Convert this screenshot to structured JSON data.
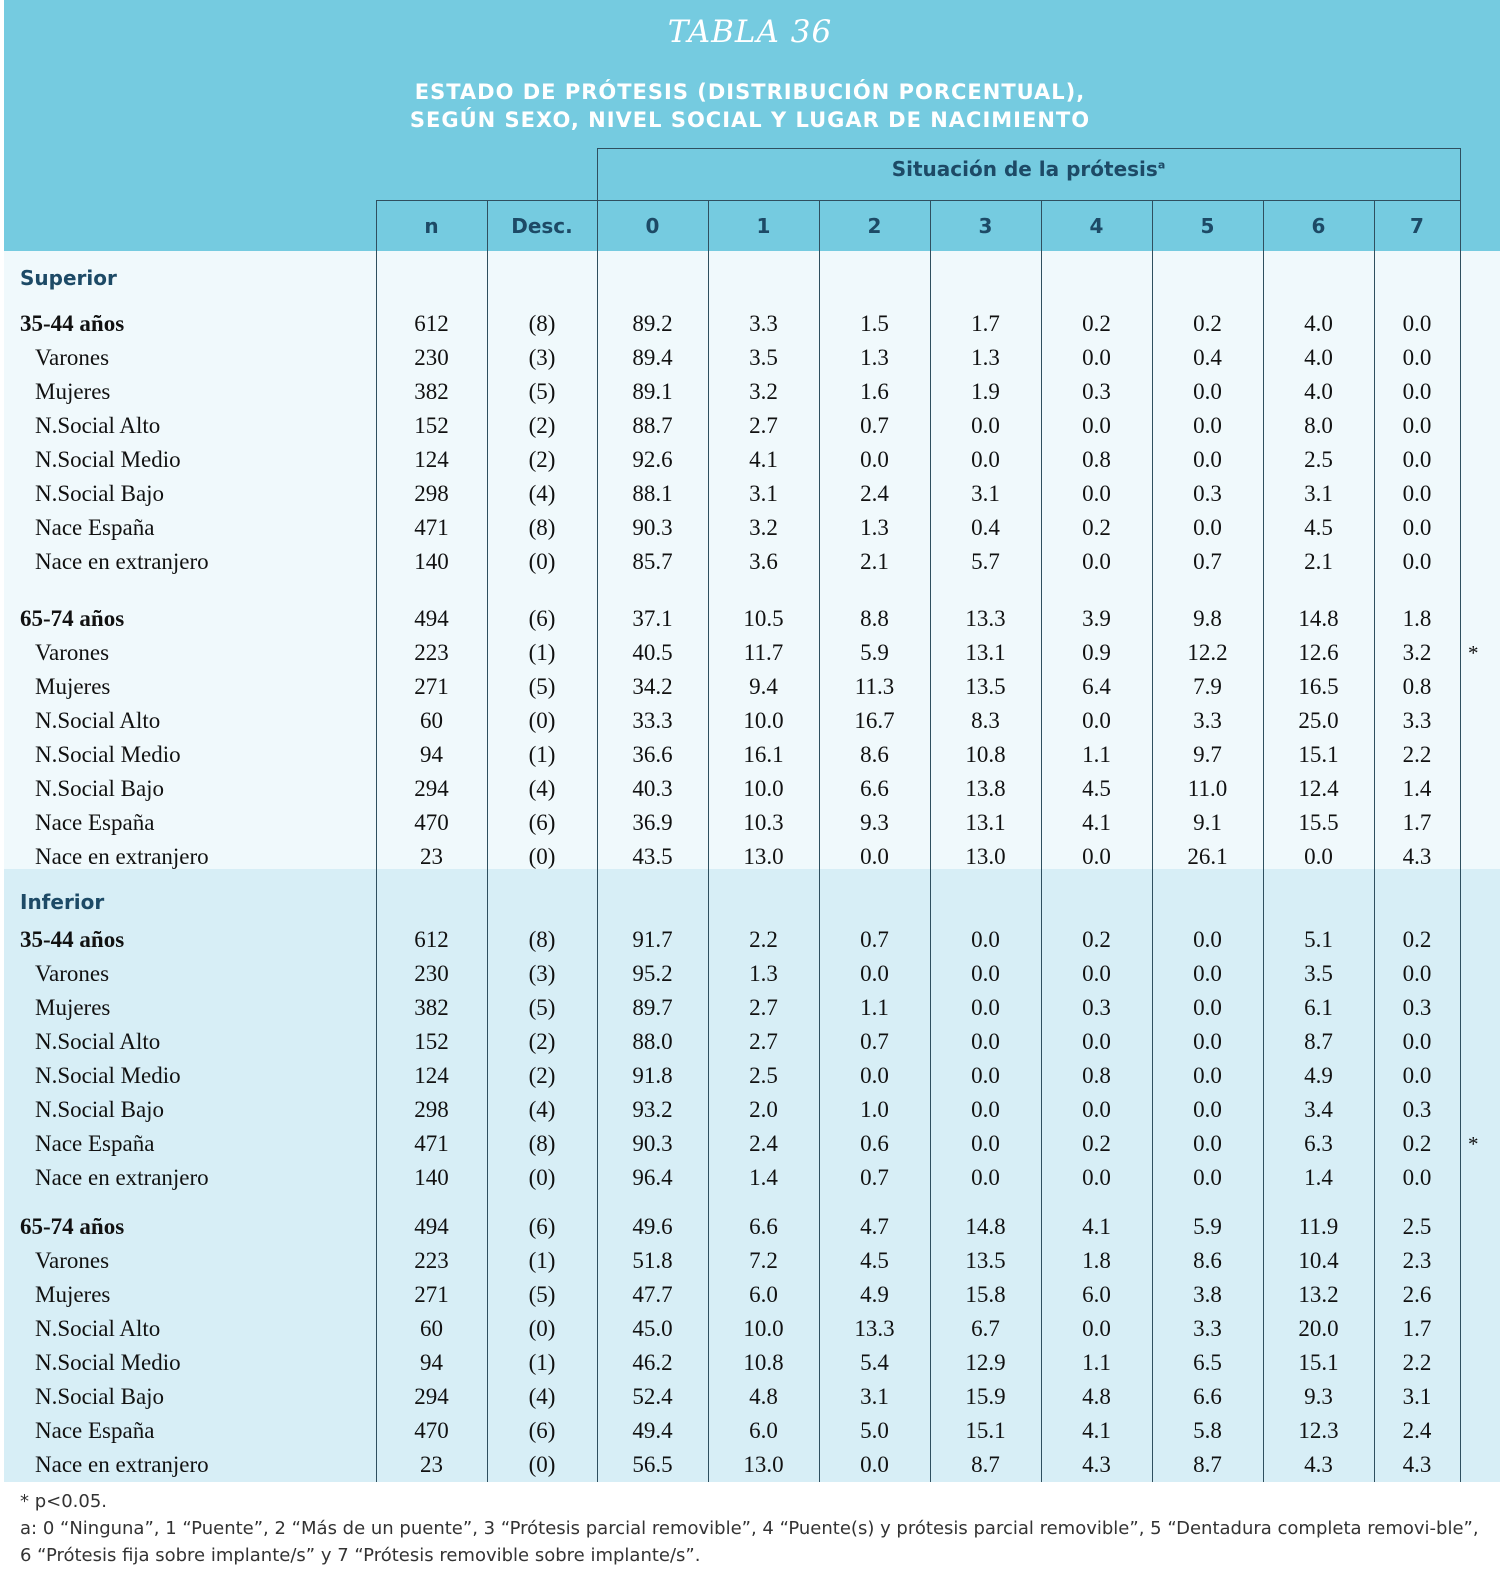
{
  "title": "TABLA 36",
  "subtitle_line1": "ESTADO DE PRÓTESIS (DISTRIBUCIÓN PORCENTUAL),",
  "subtitle_line2": "SEGÚN SEXO, NIVEL SOCIAL Y LUGAR DE NACIMIENTO",
  "group_header": "Situación de la prótesis",
  "group_header_sup": "a",
  "columns": [
    "n",
    "Desc.",
    "0",
    "1",
    "2",
    "3",
    "4",
    "5",
    "6",
    "7"
  ],
  "colors": {
    "header_band": "#75cbe0",
    "superior_band": "#f0f9fc",
    "inferior_band": "#d7eef6",
    "heading_text": "#1d4a66"
  },
  "sections": [
    {
      "label": "Superior",
      "groups": [
        {
          "rows": [
            {
              "label": "35-44 años",
              "bold": true,
              "values": [
                "612",
                "(8)",
                "89.2",
                "3.3",
                "1.5",
                "1.7",
                "0.2",
                "0.2",
                "4.0",
                "0.0"
              ],
              "star": ""
            },
            {
              "label": "Varones",
              "bold": false,
              "values": [
                "230",
                "(3)",
                "89.4",
                "3.5",
                "1.3",
                "1.3",
                "0.0",
                "0.4",
                "4.0",
                "0.0"
              ],
              "star": ""
            },
            {
              "label": "Mujeres",
              "bold": false,
              "values": [
                "382",
                "(5)",
                "89.1",
                "3.2",
                "1.6",
                "1.9",
                "0.3",
                "0.0",
                "4.0",
                "0.0"
              ],
              "star": ""
            },
            {
              "label": "N.Social Alto",
              "bold": false,
              "values": [
                "152",
                "(2)",
                "88.7",
                "2.7",
                "0.7",
                "0.0",
                "0.0",
                "0.0",
                "8.0",
                "0.0"
              ],
              "star": ""
            },
            {
              "label": "N.Social Medio",
              "bold": false,
              "values": [
                "124",
                "(2)",
                "92.6",
                "4.1",
                "0.0",
                "0.0",
                "0.8",
                "0.0",
                "2.5",
                "0.0"
              ],
              "star": ""
            },
            {
              "label": "N.Social Bajo",
              "bold": false,
              "values": [
                "298",
                "(4)",
                "88.1",
                "3.1",
                "2.4",
                "3.1",
                "0.0",
                "0.3",
                "3.1",
                "0.0"
              ],
              "star": ""
            },
            {
              "label": "Nace España",
              "bold": false,
              "values": [
                "471",
                "(8)",
                "90.3",
                "3.2",
                "1.3",
                "0.4",
                "0.2",
                "0.0",
                "4.5",
                "0.0"
              ],
              "star": ""
            },
            {
              "label": "Nace en extranjero",
              "bold": false,
              "values": [
                "140",
                "(0)",
                "85.7",
                "3.6",
                "2.1",
                "5.7",
                "0.0",
                "0.7",
                "2.1",
                "0.0"
              ],
              "star": ""
            }
          ]
        },
        {
          "rows": [
            {
              "label": "65-74 años",
              "bold": true,
              "values": [
                "494",
                "(6)",
                "37.1",
                "10.5",
                "8.8",
                "13.3",
                "3.9",
                "9.8",
                "14.8",
                "1.8"
              ],
              "star": ""
            },
            {
              "label": "Varones",
              "bold": false,
              "values": [
                "223",
                "(1)",
                "40.5",
                "11.7",
                "5.9",
                "13.1",
                "0.9",
                "12.2",
                "12.6",
                "3.2"
              ],
              "star": "*"
            },
            {
              "label": "Mujeres",
              "bold": false,
              "values": [
                "271",
                "(5)",
                "34.2",
                "9.4",
                "11.3",
                "13.5",
                "6.4",
                "7.9",
                "16.5",
                "0.8"
              ],
              "star": ""
            },
            {
              "label": "N.Social Alto",
              "bold": false,
              "values": [
                "60",
                "(0)",
                "33.3",
                "10.0",
                "16.7",
                "8.3",
                "0.0",
                "3.3",
                "25.0",
                "3.3"
              ],
              "star": ""
            },
            {
              "label": "N.Social Medio",
              "bold": false,
              "values": [
                "94",
                "(1)",
                "36.6",
                "16.1",
                "8.6",
                "10.8",
                "1.1",
                "9.7",
                "15.1",
                "2.2"
              ],
              "star": ""
            },
            {
              "label": "N.Social Bajo",
              "bold": false,
              "values": [
                "294",
                "(4)",
                "40.3",
                "10.0",
                "6.6",
                "13.8",
                "4.5",
                "11.0",
                "12.4",
                "1.4"
              ],
              "star": ""
            },
            {
              "label": "Nace España",
              "bold": false,
              "values": [
                "470",
                "(6)",
                "36.9",
                "10.3",
                "9.3",
                "13.1",
                "4.1",
                "9.1",
                "15.5",
                "1.7"
              ],
              "star": ""
            },
            {
              "label": "Nace en extranjero",
              "bold": false,
              "values": [
                "23",
                "(0)",
                "43.5",
                "13.0",
                "0.0",
                "13.0",
                "0.0",
                "26.1",
                "0.0",
                "4.3"
              ],
              "star": ""
            }
          ]
        }
      ]
    },
    {
      "label": "Inferior",
      "groups": [
        {
          "rows": [
            {
              "label": "35-44 años",
              "bold": true,
              "values": [
                "612",
                "(8)",
                "91.7",
                "2.2",
                "0.7",
                "0.0",
                "0.2",
                "0.0",
                "5.1",
                "0.2"
              ],
              "star": ""
            },
            {
              "label": "Varones",
              "bold": false,
              "values": [
                "230",
                "(3)",
                "95.2",
                "1.3",
                "0.0",
                "0.0",
                "0.0",
                "0.0",
                "3.5",
                "0.0"
              ],
              "star": ""
            },
            {
              "label": "Mujeres",
              "bold": false,
              "values": [
                "382",
                "(5)",
                "89.7",
                "2.7",
                "1.1",
                "0.0",
                "0.3",
                "0.0",
                "6.1",
                "0.3"
              ],
              "star": ""
            },
            {
              "label": "N.Social Alto",
              "bold": false,
              "values": [
                "152",
                "(2)",
                "88.0",
                "2.7",
                "0.7",
                "0.0",
                "0.0",
                "0.0",
                "8.7",
                "0.0"
              ],
              "star": ""
            },
            {
              "label": "N.Social Medio",
              "bold": false,
              "values": [
                "124",
                "(2)",
                "91.8",
                "2.5",
                "0.0",
                "0.0",
                "0.8",
                "0.0",
                "4.9",
                "0.0"
              ],
              "star": ""
            },
            {
              "label": "N.Social Bajo",
              "bold": false,
              "values": [
                "298",
                "(4)",
                "93.2",
                "2.0",
                "1.0",
                "0.0",
                "0.0",
                "0.0",
                "3.4",
                "0.3"
              ],
              "star": ""
            },
            {
              "label": "Nace España",
              "bold": false,
              "values": [
                "471",
                "(8)",
                "90.3",
                "2.4",
                "0.6",
                "0.0",
                "0.2",
                "0.0",
                "6.3",
                "0.2"
              ],
              "star": "*"
            },
            {
              "label": "Nace en extranjero",
              "bold": false,
              "values": [
                "140",
                "(0)",
                "96.4",
                "1.4",
                "0.7",
                "0.0",
                "0.0",
                "0.0",
                "1.4",
                "0.0"
              ],
              "star": ""
            }
          ]
        },
        {
          "rows": [
            {
              "label": "65-74 años",
              "bold": true,
              "values": [
                "494",
                "(6)",
                "49.6",
                "6.6",
                "4.7",
                "14.8",
                "4.1",
                "5.9",
                "11.9",
                "2.5"
              ],
              "star": ""
            },
            {
              "label": "Varones",
              "bold": false,
              "values": [
                "223",
                "(1)",
                "51.8",
                "7.2",
                "4.5",
                "13.5",
                "1.8",
                "8.6",
                "10.4",
                "2.3"
              ],
              "star": ""
            },
            {
              "label": "Mujeres",
              "bold": false,
              "values": [
                "271",
                "(5)",
                "47.7",
                "6.0",
                "4.9",
                "15.8",
                "6.0",
                "3.8",
                "13.2",
                "2.6"
              ],
              "star": ""
            },
            {
              "label": "N.Social Alto",
              "bold": false,
              "values": [
                "60",
                "(0)",
                "45.0",
                "10.0",
                "13.3",
                "6.7",
                "0.0",
                "3.3",
                "20.0",
                "1.7"
              ],
              "star": ""
            },
            {
              "label": "N.Social Medio",
              "bold": false,
              "values": [
                "94",
                "(1)",
                "46.2",
                "10.8",
                "5.4",
                "12.9",
                "1.1",
                "6.5",
                "15.1",
                "2.2"
              ],
              "star": ""
            },
            {
              "label": "N.Social Bajo",
              "bold": false,
              "values": [
                "294",
                "(4)",
                "52.4",
                "4.8",
                "3.1",
                "15.9",
                "4.8",
                "6.6",
                "9.3",
                "3.1"
              ],
              "star": ""
            },
            {
              "label": "Nace España",
              "bold": false,
              "values": [
                "470",
                "(6)",
                "49.4",
                "6.0",
                "5.0",
                "15.1",
                "4.1",
                "5.8",
                "12.3",
                "2.4"
              ],
              "star": ""
            },
            {
              "label": "Nace en extranjero",
              "bold": false,
              "values": [
                "23",
                "(0)",
                "56.5",
                "13.0",
                "0.0",
                "8.7",
                "4.3",
                "8.7",
                "4.3",
                "4.3"
              ],
              "star": ""
            }
          ]
        }
      ]
    }
  ],
  "footnotes": [
    "* p<0.05.",
    "a: 0 “Ninguna”, 1 “Puente”, 2 “Más de un puente”, 3 “Prótesis parcial removible”, 4 “Puente(s) y prótesis parcial removible”, 5 “Dentadura completa removi-ble”, 6 “Prótesis fija sobre implante/s” y 7 “Prótesis removible sobre implante/s”."
  ]
}
